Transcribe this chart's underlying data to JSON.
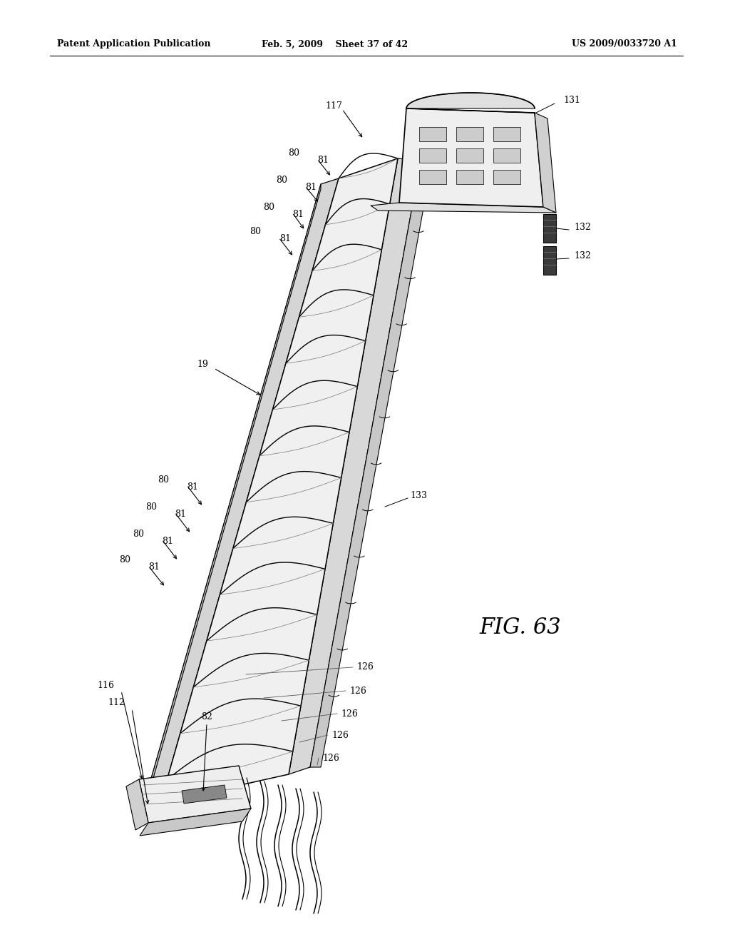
{
  "header_left": "Patent Application Publication",
  "header_mid": "Feb. 5, 2009    Sheet 37 of 42",
  "header_right": "US 2009/0033720 A1",
  "fig_label": "FIG. 63",
  "bg_color": "#ffffff",
  "line_color": "#1a1a1a",
  "header_fontsize": 9,
  "fig_fontsize": 22,
  "label_fontsize": 9
}
